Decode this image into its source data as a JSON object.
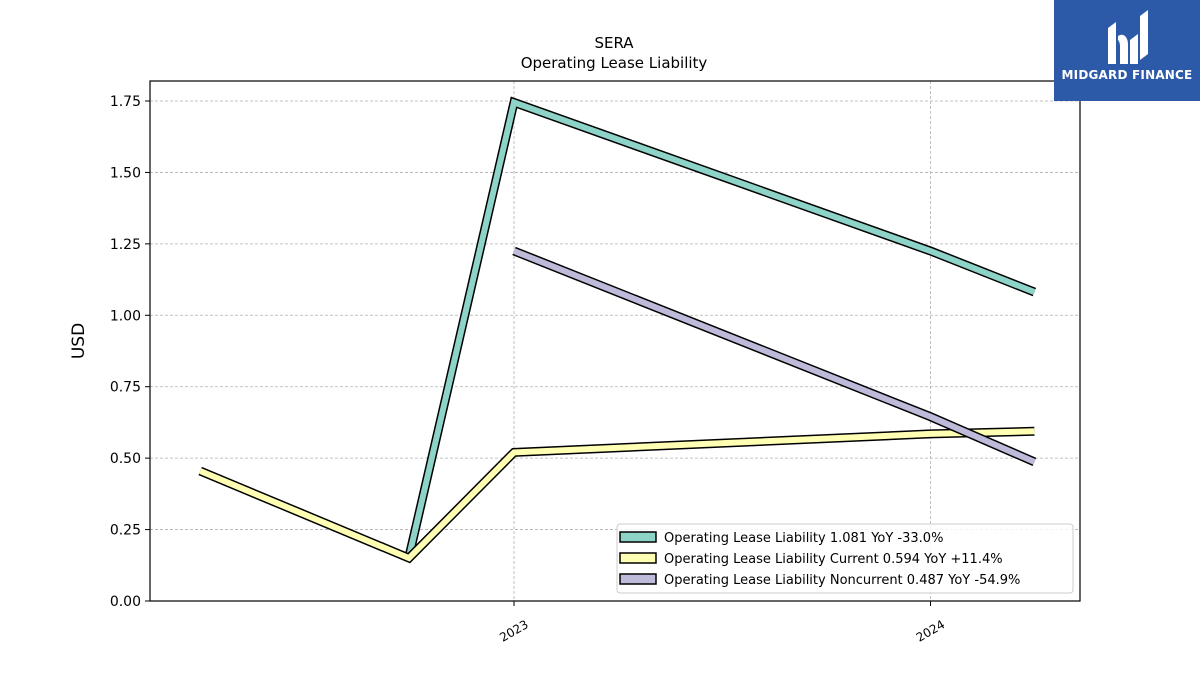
{
  "chart_data": {
    "type": "line",
    "title": "SERA",
    "subtitle": "Operating Lease Liability",
    "xlabel": "",
    "ylabel": "USD",
    "ylim": [
      0,
      1.82
    ],
    "yticks": [
      "0.00",
      "0.25",
      "0.50",
      "0.75",
      "1.00",
      "1.25",
      "1.50",
      "1.75"
    ],
    "ytick_values": [
      0,
      0.25,
      0.5,
      0.75,
      1.0,
      1.25,
      1.5,
      1.75
    ],
    "xlim": [
      "2022-02-15",
      "2024-05-10"
    ],
    "xticks": [
      {
        "label": "2023",
        "date": "2022-12-31"
      },
      {
        "label": "2024",
        "date": "2023-12-31"
      }
    ],
    "grid": true,
    "legend_position": "lower-right",
    "series": [
      {
        "name": "Operating Lease Liability",
        "legend_label": "Operating Lease Liability  1.081 YoY -33.0%",
        "color": "#8dd3c7",
        "points": [
          {
            "x": "2022-09-30",
            "y": 0.155
          },
          {
            "x": "2022-12-31",
            "y": 1.745
          },
          {
            "x": "2023-12-31",
            "y": 1.225
          },
          {
            "x": "2024-03-31",
            "y": 1.081
          }
        ]
      },
      {
        "name": "Operating Lease Liability Current",
        "legend_label": "Operating Lease Liability Current  0.594 YoY +11.4%",
        "color": "#ffffb3",
        "points": [
          {
            "x": "2022-03-31",
            "y": 0.455
          },
          {
            "x": "2022-09-30",
            "y": 0.15
          },
          {
            "x": "2022-12-31",
            "y": 0.52
          },
          {
            "x": "2023-12-31",
            "y": 0.585
          },
          {
            "x": "2024-03-31",
            "y": 0.594
          }
        ]
      },
      {
        "name": "Operating Lease Liability Noncurrent",
        "legend_label": "Operating Lease Liability Noncurrent  0.487 YoY -54.9%",
        "color": "#bebada",
        "points": [
          {
            "x": "2022-12-31",
            "y": 1.225
          },
          {
            "x": "2023-12-31",
            "y": 0.645
          },
          {
            "x": "2024-03-31",
            "y": 0.487
          }
        ]
      }
    ]
  },
  "logo": {
    "text": "MIDGARD FINANCE",
    "background": "#2d5aa8",
    "icon": "midgard-logo-icon"
  }
}
